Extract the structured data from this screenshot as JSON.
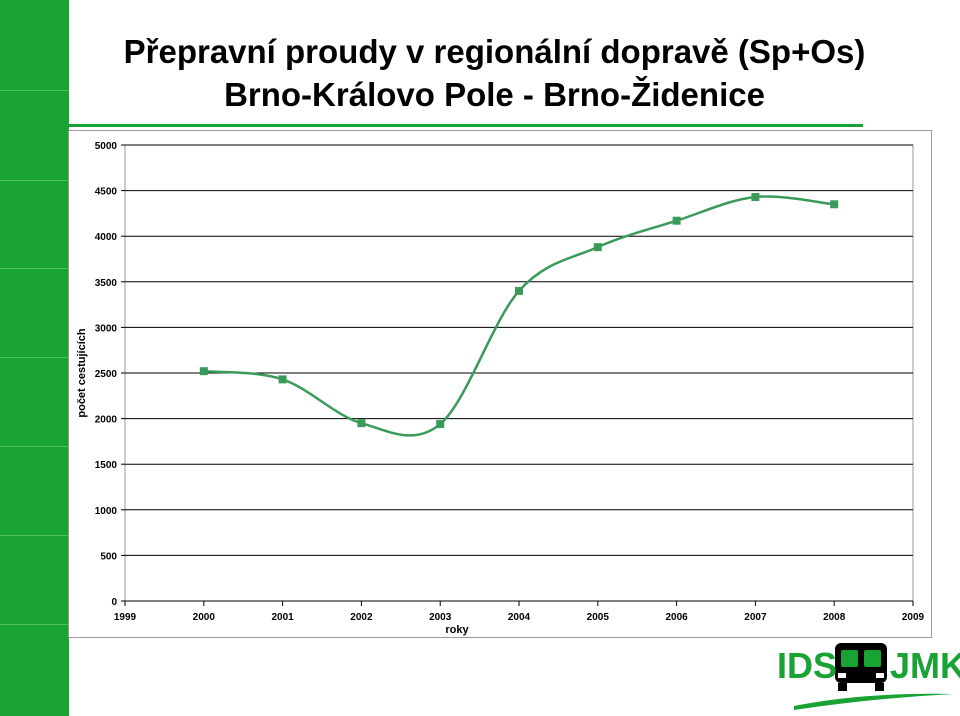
{
  "slide": {
    "title_line1": "Přepravní proudy v regionální dopravě (Sp+Os)",
    "title_line2": "Brno-Královo Pole - Brno-Židenice"
  },
  "colors": {
    "brand_green": "#19a332",
    "series": "#3a9a5a",
    "grid": "#000000"
  },
  "logo": {
    "text_left": "IDS",
    "text_right": "JMK"
  },
  "chart_data": {
    "type": "line",
    "title": "",
    "xlabel": "roky",
    "ylabel": "počet cestujících",
    "xlim": [
      1999,
      2009
    ],
    "ylim": [
      0,
      5000
    ],
    "x_ticks": [
      "1999",
      "2000",
      "2001",
      "2002",
      "2003",
      "2004",
      "2005",
      "2006",
      "2007",
      "2008",
      "2009"
    ],
    "y_ticks": [
      "0",
      "500",
      "1000",
      "1500",
      "2000",
      "2500",
      "3000",
      "3500",
      "4000",
      "4500",
      "5000"
    ],
    "grid": "horizontal",
    "smooth": true,
    "marker": "square",
    "series": [
      {
        "x": [
          2000,
          2001,
          2002,
          2003,
          2004,
          2005,
          2006,
          2007,
          2008
        ],
        "values": [
          2520,
          2430,
          1950,
          1940,
          3400,
          3880,
          4170,
          4430,
          4350
        ]
      }
    ]
  }
}
